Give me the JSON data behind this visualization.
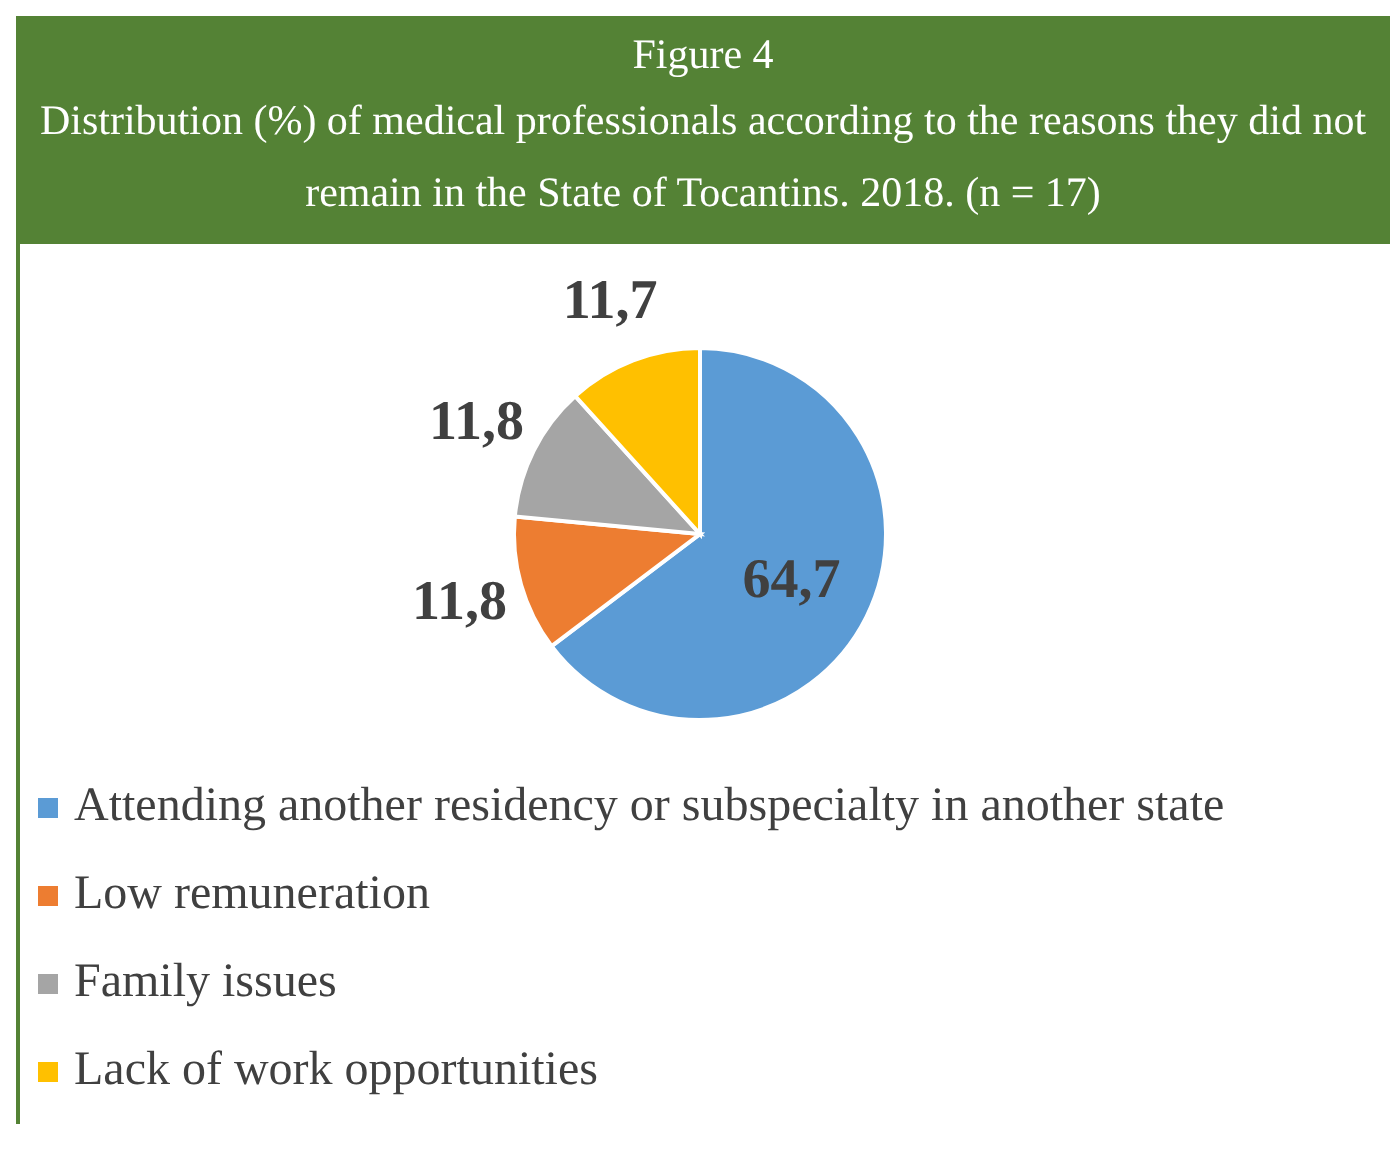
{
  "chart_data": {
    "type": "pie",
    "title": "Figure 4",
    "subtitle": "Distribution (%) of medical professionals according to the reasons they did not remain in the State of Tocantins. 2018. (n = 17)",
    "categories": [
      "Attending another residency or subspecialty in another state",
      "Low remuneration",
      "Family issues",
      "Lack of work opportunities"
    ],
    "values": [
      64.7,
      11.8,
      11.8,
      11.7
    ],
    "colors": [
      "#5b9bd5",
      "#ed7d31",
      "#a5a5a5",
      "#ffc000"
    ],
    "value_labels": [
      "64,7",
      "11,8",
      "11,8",
      "11,7"
    ],
    "legend": "bottom"
  }
}
